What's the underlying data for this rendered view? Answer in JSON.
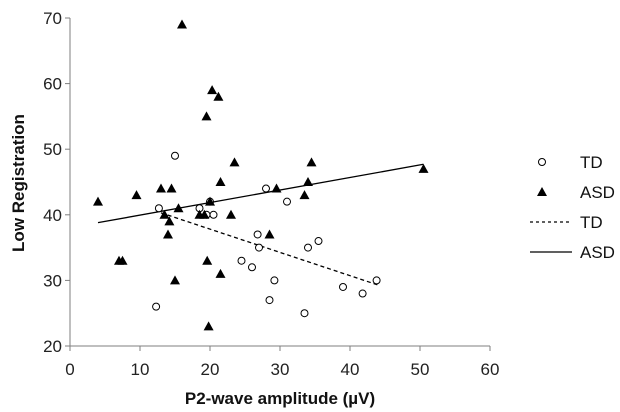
{
  "chart_data": {
    "type": "scatter",
    "title": "",
    "xlabel": "P2-wave amplitude (µV)",
    "ylabel": "Low Registration",
    "xlim": [
      0,
      60
    ],
    "ylim": [
      20,
      70
    ],
    "xticks": [
      0,
      10,
      20,
      30,
      40,
      50,
      60
    ],
    "yticks": [
      20,
      30,
      40,
      50,
      60,
      70
    ],
    "grid": false,
    "legend_position": "right",
    "series": [
      {
        "name": "TD",
        "marker": "circle-open",
        "color": "#000000",
        "points": [
          [
            12.3,
            26
          ],
          [
            12.7,
            41
          ],
          [
            15,
            49
          ],
          [
            18.5,
            41
          ],
          [
            19.5,
            40
          ],
          [
            20,
            42
          ],
          [
            20.5,
            40
          ],
          [
            24.5,
            33
          ],
          [
            26,
            32
          ],
          [
            26.8,
            37
          ],
          [
            27,
            35
          ],
          [
            28,
            44
          ],
          [
            28.5,
            27
          ],
          [
            29.2,
            30
          ],
          [
            31,
            42
          ],
          [
            33.5,
            25
          ],
          [
            34,
            35
          ],
          [
            35.5,
            36
          ],
          [
            39,
            29
          ],
          [
            41.8,
            28
          ],
          [
            43.8,
            30
          ]
        ]
      },
      {
        "name": "ASD",
        "marker": "triangle-filled",
        "color": "#000000",
        "points": [
          [
            4,
            42
          ],
          [
            7,
            33
          ],
          [
            7.5,
            33
          ],
          [
            9.5,
            43
          ],
          [
            13,
            44
          ],
          [
            13.5,
            40
          ],
          [
            14,
            37
          ],
          [
            14.2,
            39
          ],
          [
            14.5,
            44
          ],
          [
            15,
            30
          ],
          [
            15.5,
            41
          ],
          [
            16,
            69
          ],
          [
            18.5,
            40
          ],
          [
            19.2,
            40
          ],
          [
            19.5,
            55
          ],
          [
            19.6,
            33
          ],
          [
            19.8,
            23
          ],
          [
            20,
            42
          ],
          [
            20.3,
            59
          ],
          [
            21.2,
            58
          ],
          [
            21.5,
            45
          ],
          [
            21.5,
            31
          ],
          [
            23,
            40
          ],
          [
            23.5,
            48
          ],
          [
            28.5,
            37
          ],
          [
            29.5,
            44
          ],
          [
            33.5,
            43
          ],
          [
            34,
            45
          ],
          [
            34.5,
            48
          ],
          [
            50.5,
            47
          ]
        ]
      }
    ],
    "trendlines": [
      {
        "name": "TD",
        "style": "dashed",
        "color": "#000000",
        "from": [
          13,
          40.3
        ],
        "to": [
          44,
          29.3
        ]
      },
      {
        "name": "ASD",
        "style": "solid",
        "color": "#000000",
        "from": [
          4,
          38.8
        ],
        "to": [
          50.5,
          47.7
        ]
      }
    ],
    "legend": [
      {
        "label": "TD",
        "kind": "circle-open"
      },
      {
        "label": "ASD",
        "kind": "triangle-filled"
      },
      {
        "label": "TD",
        "kind": "dashed-line"
      },
      {
        "label": "ASD",
        "kind": "solid-line"
      }
    ]
  }
}
